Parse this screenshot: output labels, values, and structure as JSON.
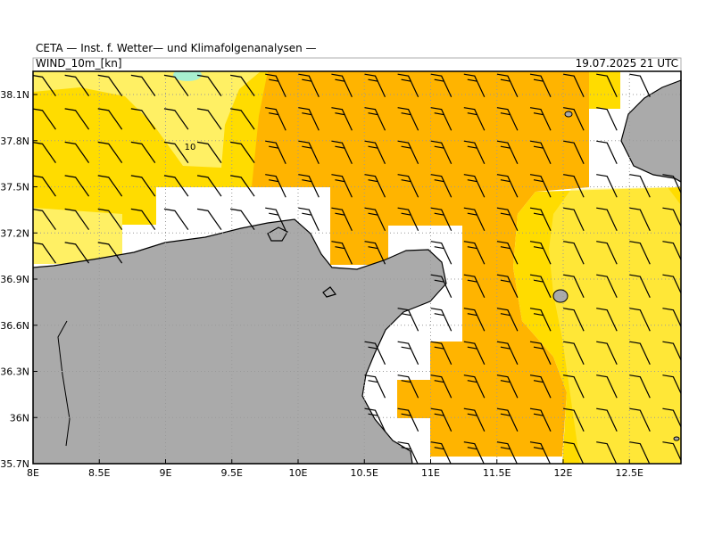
{
  "header": {
    "institute": "CETA — Inst. f. Wetter— und Klimafolgenanalysen —",
    "variable": "WIND_10m_[kn]",
    "datetime": "19.07.2025 21 UTC"
  },
  "map": {
    "lat_labels": [
      "38.1N",
      "37.8N",
      "37.5N",
      "37.2N",
      "36.9N",
      "36.6N",
      "36.3N",
      "36N",
      "35.7N"
    ],
    "lon_labels": [
      "8E",
      "8.5E",
      "9E",
      "9.5E",
      "10E",
      "10.5E",
      "11E",
      "11.5E",
      "12E",
      "12.5E"
    ],
    "contour_label": "10"
  }
}
